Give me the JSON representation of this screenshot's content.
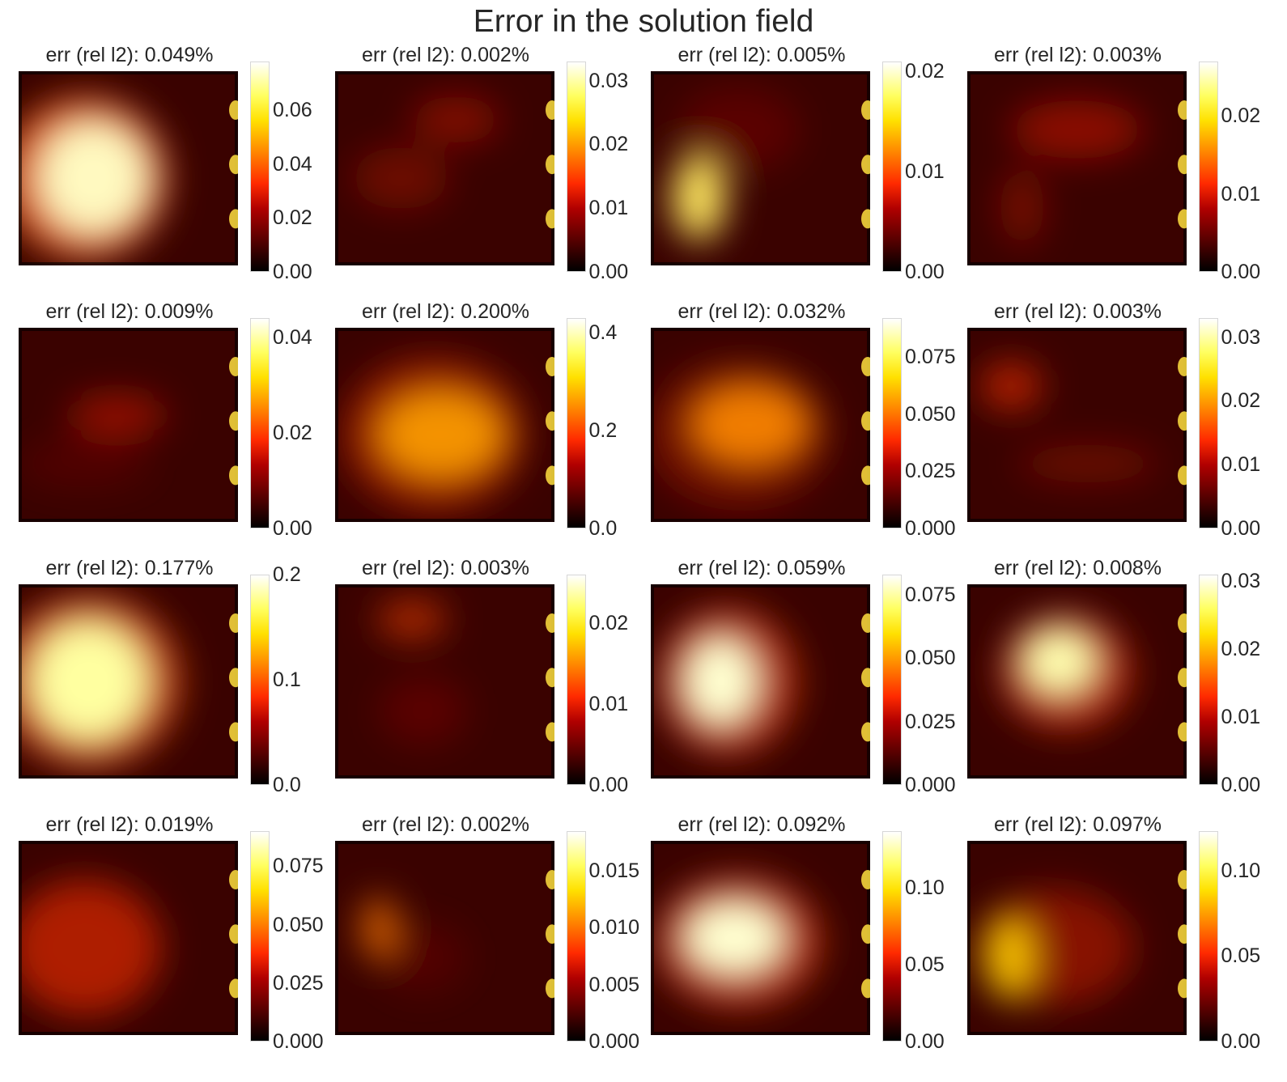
{
  "title": "Error in the solution field",
  "colormap": "hot",
  "chart_data": [
    {
      "type": "heatmap",
      "title": "err (rel l2): 0.049%",
      "colorbar": {
        "range": [
          0,
          0.078
        ],
        "ticks": [
          "0.00",
          "0.02",
          "0.04",
          "0.06"
        ],
        "tick_values": [
          0,
          0.02,
          0.04,
          0.06
        ]
      }
    },
    {
      "type": "heatmap",
      "title": "err (rel l2): 0.002%",
      "colorbar": {
        "range": [
          0,
          0.033
        ],
        "ticks": [
          "0.00",
          "0.01",
          "0.02",
          "0.03"
        ],
        "tick_values": [
          0,
          0.01,
          0.02,
          0.03
        ]
      }
    },
    {
      "type": "heatmap",
      "title": "err (rel l2): 0.005%",
      "colorbar": {
        "range": [
          0,
          0.021
        ],
        "ticks": [
          "0.00",
          "0.01",
          "0.02"
        ],
        "tick_values": [
          0,
          0.01,
          0.02
        ]
      }
    },
    {
      "type": "heatmap",
      "title": "err (rel l2): 0.003%",
      "colorbar": {
        "range": [
          0,
          0.027
        ],
        "ticks": [
          "0.00",
          "0.01",
          "0.02"
        ],
        "tick_values": [
          0,
          0.01,
          0.02
        ]
      }
    },
    {
      "type": "heatmap",
      "title": "err (rel l2): 0.009%",
      "colorbar": {
        "range": [
          0,
          0.044
        ],
        "ticks": [
          "0.00",
          "0.02",
          "0.04"
        ],
        "tick_values": [
          0,
          0.02,
          0.04
        ]
      }
    },
    {
      "type": "heatmap",
      "title": "err (rel l2): 0.200%",
      "colorbar": {
        "range": [
          0,
          0.43
        ],
        "ticks": [
          "0.0",
          "0.2",
          "0.4"
        ],
        "tick_values": [
          0,
          0.2,
          0.4
        ]
      }
    },
    {
      "type": "heatmap",
      "title": "err (rel l2): 0.032%",
      "colorbar": {
        "range": [
          0,
          0.092
        ],
        "ticks": [
          "0.000",
          "0.025",
          "0.050",
          "0.075"
        ],
        "tick_values": [
          0,
          0.025,
          0.05,
          0.075
        ]
      }
    },
    {
      "type": "heatmap",
      "title": "err (rel l2): 0.003%",
      "colorbar": {
        "range": [
          0,
          0.033
        ],
        "ticks": [
          "0.00",
          "0.01",
          "0.02",
          "0.03"
        ],
        "tick_values": [
          0,
          0.01,
          0.02,
          0.03
        ]
      }
    },
    {
      "type": "heatmap",
      "title": "err (rel l2): 0.177%",
      "colorbar": {
        "range": [
          0,
          0.2
        ],
        "ticks": [
          "0.0",
          "0.1",
          "0.2"
        ],
        "tick_values": [
          0,
          0.1,
          0.2
        ]
      }
    },
    {
      "type": "heatmap",
      "title": "err (rel l2): 0.003%",
      "colorbar": {
        "range": [
          0,
          0.026
        ],
        "ticks": [
          "0.00",
          "0.01",
          "0.02"
        ],
        "tick_values": [
          0,
          0.01,
          0.02
        ]
      }
    },
    {
      "type": "heatmap",
      "title": "err (rel l2): 0.059%",
      "colorbar": {
        "range": [
          0,
          0.083
        ],
        "ticks": [
          "0.000",
          "0.025",
          "0.050",
          "0.075"
        ],
        "tick_values": [
          0,
          0.025,
          0.05,
          0.075
        ]
      }
    },
    {
      "type": "heatmap",
      "title": "err (rel l2): 0.008%",
      "colorbar": {
        "range": [
          0,
          0.031
        ],
        "ticks": [
          "0.00",
          "0.01",
          "0.02",
          "0.03"
        ],
        "tick_values": [
          0,
          0.01,
          0.02,
          0.03
        ]
      }
    },
    {
      "type": "heatmap",
      "title": "err (rel l2): 0.019%",
      "colorbar": {
        "range": [
          0,
          0.09
        ],
        "ticks": [
          "0.000",
          "0.025",
          "0.050",
          "0.075"
        ],
        "tick_values": [
          0,
          0.025,
          0.05,
          0.075
        ]
      }
    },
    {
      "type": "heatmap",
      "title": "err (rel l2): 0.002%",
      "colorbar": {
        "range": [
          0,
          0.0185
        ],
        "ticks": [
          "0.000",
          "0.005",
          "0.010",
          "0.015"
        ],
        "tick_values": [
          0,
          0.005,
          0.01,
          0.015
        ]
      }
    },
    {
      "type": "heatmap",
      "title": "err (rel l2): 0.092%",
      "colorbar": {
        "range": [
          0,
          0.137
        ],
        "ticks": [
          "0.00",
          "0.05",
          "0.10"
        ],
        "tick_values": [
          0,
          0.05,
          0.1
        ]
      }
    },
    {
      "type": "heatmap",
      "title": "err (rel l2): 0.097%",
      "colorbar": {
        "range": [
          0,
          0.123
        ],
        "ticks": [
          "0.00",
          "0.05",
          "0.10"
        ],
        "tick_values": [
          0,
          0.05,
          0.1
        ]
      }
    }
  ]
}
